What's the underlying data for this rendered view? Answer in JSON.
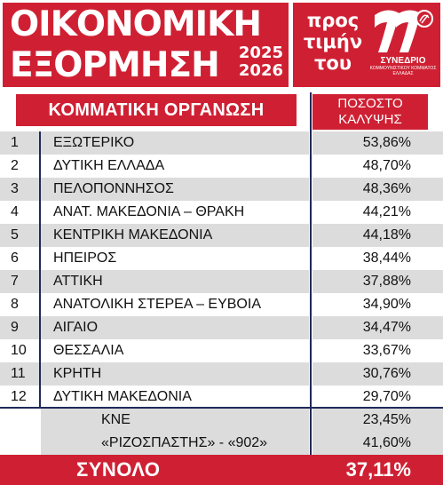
{
  "header": {
    "title_line1": "ΟΙΚΟΝΟΜΙΚΗ",
    "title_line2": "ΕΞΟΡΜΗΣΗ",
    "year1": "2025",
    "year2": "2026",
    "honor_line1": "προς",
    "honor_line2": "τιμήν",
    "honor_line3": "του",
    "logo_caption": "ΣΥΝΕΔΡΙΟ",
    "logo_sub": "ΚΟΜΜΟΥΝΙΣΤΙΚΟΥ ΚΟΜΜΑΤΟΣ ΕΛΛΑΔΑΣ",
    "colors": {
      "brand_red": "#cf2033",
      "navy": "#1f2a5a",
      "shade": "#dcdcdc"
    }
  },
  "table": {
    "col_org": "ΚΟΜΜΑΤΙΚΗ ΟΡΓΑΝΩΣΗ",
    "col_pct_line1": "ΠΟΣΟΣΤΟ",
    "col_pct_line2": "ΚΑΛΥΨΗΣ",
    "rows": [
      {
        "num": "1",
        "name": "ΕΞΩΤΕΡΙΚΟ",
        "pct": "53,86%"
      },
      {
        "num": "2",
        "name": "ΔΥΤΙΚΗ ΕΛΛΑΔΑ",
        "pct": "48,70%"
      },
      {
        "num": "3",
        "name": "ΠΕΛΟΠΟΝΝΗΣΟΣ",
        "pct": "48,36%"
      },
      {
        "num": "4",
        "name": "ΑΝΑΤ. ΜΑΚΕΔΟΝΙΑ – ΘΡΑΚΗ",
        "pct": "44,21%"
      },
      {
        "num": "5",
        "name": "ΚΕΝΤΡΙΚΗ ΜΑΚΕΔΟΝΙΑ",
        "pct": "44,18%"
      },
      {
        "num": "6",
        "name": "ΗΠΕΙΡΟΣ",
        "pct": "38,44%"
      },
      {
        "num": "7",
        "name": "ΑΤΤΙΚΗ",
        "pct": "37,88%"
      },
      {
        "num": "8",
        "name": "ΑΝΑΤΟΛΙΚΗ ΣΤΕΡΕΑ – ΕΥΒΟΙΑ",
        "pct": "34,90%"
      },
      {
        "num": "9",
        "name": "ΑΙΓΑΙΟ",
        "pct": "34,47%"
      },
      {
        "num": "10",
        "name": "ΘΕΣΣΑΛΙΑ",
        "pct": "33,67%"
      },
      {
        "num": "11",
        "name": "ΚΡΗΤΗ",
        "pct": "30,76%"
      },
      {
        "num": "12",
        "name": "ΔΥΤΙΚΗ ΜΑΚΕΔΟΝΙΑ",
        "pct": "29,70%"
      }
    ],
    "extra": [
      {
        "name": "ΚΝΕ",
        "pct": "23,45%"
      },
      {
        "name": "«ΡΙΖΟΣΠΑΣΤΗΣ» - «902»",
        "pct": "41,60%"
      }
    ],
    "total_label": "ΣΥΝΟΛΟ",
    "total_pct": "37,11%"
  }
}
